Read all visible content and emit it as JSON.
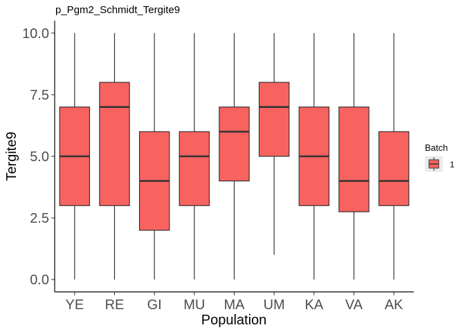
{
  "chart_data": {
    "type": "boxplot",
    "title": "p_Pgm2_Schmidt_Tergite9",
    "xlabel": "Population",
    "ylabel": "Tergite9",
    "ylim": [
      -0.5,
      10.5
    ],
    "yticks": [
      "0.0",
      "2.5",
      "5.0",
      "7.5",
      "10.0"
    ],
    "ytick_values": [
      0,
      2.5,
      5,
      7.5,
      10
    ],
    "categories": [
      "YE",
      "RE",
      "GI",
      "MU",
      "MA",
      "UM",
      "KA",
      "VA",
      "AK"
    ],
    "boxes": [
      {
        "category": "YE",
        "min": 0,
        "q1": 3,
        "median": 5,
        "q3": 7,
        "max": 10
      },
      {
        "category": "RE",
        "min": 0,
        "q1": 3,
        "median": 7,
        "q3": 8,
        "max": 10
      },
      {
        "category": "GI",
        "min": 0,
        "q1": 2,
        "median": 4,
        "q3": 6,
        "max": 10
      },
      {
        "category": "MU",
        "min": 0,
        "q1": 3,
        "median": 5,
        "q3": 6,
        "max": 10
      },
      {
        "category": "MA",
        "min": 0,
        "q1": 4,
        "median": 6,
        "q3": 7,
        "max": 10
      },
      {
        "category": "UM",
        "min": 1,
        "q1": 5,
        "median": 7,
        "q3": 8,
        "max": 10
      },
      {
        "category": "KA",
        "min": 0,
        "q1": 3,
        "median": 5,
        "q3": 7,
        "max": 10
      },
      {
        "category": "VA",
        "min": 0,
        "q1": 2.75,
        "median": 4,
        "q3": 7,
        "max": 10
      },
      {
        "category": "AK",
        "min": 0,
        "q1": 3,
        "median": 4,
        "q3": 6,
        "max": 10
      }
    ],
    "legend": {
      "title": "Batch",
      "entries": [
        "1"
      ],
      "placement": "right"
    },
    "fill_color": "#F8635F",
    "line_color": "#333333",
    "grid": false
  }
}
